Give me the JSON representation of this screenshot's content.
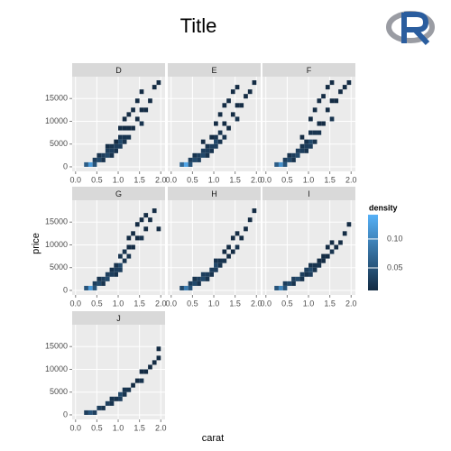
{
  "chart_data": {
    "type": "bin2d",
    "title": "Title",
    "x_label": "carat",
    "y_label": "price",
    "xlim": [
      -0.08,
      2.1
    ],
    "ylim": [
      -1000,
      19800
    ],
    "xticks": [
      {
        "value": 0,
        "label": "0.0"
      },
      0.5,
      {
        "value": 1,
        "label": "1.0"
      },
      1.5,
      {
        "value": 2,
        "label": "2.0"
      }
    ],
    "yticks": [
      0,
      5000,
      10000,
      15000
    ],
    "grid": true,
    "legend": {
      "title": "density",
      "lim": [
        0.011,
        0.142
      ],
      "ticks": [
        0.05,
        {
          "value": 0.1,
          "label": "0.10"
        }
      ],
      "low": "#132B43",
      "high": "#56B1F7"
    },
    "facets": [
      {
        "name": "D",
        "cells": [
          [
            0.2,
            0,
            0.06
          ],
          [
            0.3,
            0,
            0.12
          ],
          [
            0.4,
            0,
            0.05
          ],
          [
            0.4,
            1000,
            0.03
          ],
          [
            0.5,
            1000,
            0.04
          ],
          [
            0.5,
            2000,
            0.02
          ],
          [
            0.6,
            1000,
            0.02
          ],
          [
            0.6,
            2000,
            0.03
          ],
          [
            0.7,
            2000,
            0.04
          ],
          [
            0.7,
            3000,
            0.03
          ],
          [
            0.7,
            4000,
            0.015
          ],
          [
            0.8,
            2000,
            0.02
          ],
          [
            0.8,
            3000,
            0.03
          ],
          [
            0.8,
            4000,
            0.02
          ],
          [
            0.9,
            3000,
            0.02
          ],
          [
            0.9,
            4000,
            0.03
          ],
          [
            0.9,
            5000,
            0.012
          ],
          [
            1.0,
            4000,
            0.03
          ],
          [
            1.0,
            5000,
            0.04
          ],
          [
            1.0,
            6000,
            0.02
          ],
          [
            1.0,
            8000,
            0.012
          ],
          [
            1.1,
            5000,
            0.02
          ],
          [
            1.1,
            6000,
            0.02
          ],
          [
            1.1,
            8000,
            0.012
          ],
          [
            1.1,
            10000,
            0.012
          ],
          [
            1.2,
            6000,
            0.02
          ],
          [
            1.2,
            8000,
            0.012
          ],
          [
            1.2,
            11000,
            0.012
          ],
          [
            1.3,
            8000,
            0.012
          ],
          [
            1.3,
            12000,
            0.012
          ],
          [
            1.4,
            10000,
            0.012
          ],
          [
            1.4,
            14000,
            0.012
          ],
          [
            1.5,
            9000,
            0.02
          ],
          [
            1.5,
            12000,
            0.012
          ],
          [
            1.5,
            16000,
            0.012
          ],
          [
            1.6,
            12000,
            0.012
          ],
          [
            1.7,
            14000,
            0.012
          ],
          [
            1.8,
            17000,
            0.012
          ],
          [
            1.9,
            18000,
            0.012
          ]
        ]
      },
      {
        "name": "E",
        "cells": [
          [
            0.2,
            0,
            0.07
          ],
          [
            0.3,
            0,
            0.13
          ],
          [
            0.4,
            0,
            0.05
          ],
          [
            0.4,
            1000,
            0.03
          ],
          [
            0.5,
            1000,
            0.04
          ],
          [
            0.5,
            2000,
            0.02
          ],
          [
            0.6,
            1000,
            0.03
          ],
          [
            0.6,
            2000,
            0.03
          ],
          [
            0.7,
            2000,
            0.04
          ],
          [
            0.7,
            3000,
            0.03
          ],
          [
            0.7,
            5000,
            0.012
          ],
          [
            0.8,
            2000,
            0.02
          ],
          [
            0.8,
            3000,
            0.03
          ],
          [
            0.8,
            4000,
            0.02
          ],
          [
            0.9,
            3000,
            0.02
          ],
          [
            0.9,
            4000,
            0.03
          ],
          [
            0.9,
            6000,
            0.012
          ],
          [
            1.0,
            4000,
            0.03
          ],
          [
            1.0,
            5000,
            0.04
          ],
          [
            1.0,
            6000,
            0.02
          ],
          [
            1.0,
            9000,
            0.012
          ],
          [
            1.1,
            5000,
            0.02
          ],
          [
            1.1,
            7000,
            0.02
          ],
          [
            1.1,
            11000,
            0.012
          ],
          [
            1.2,
            6000,
            0.02
          ],
          [
            1.2,
            9000,
            0.012
          ],
          [
            1.2,
            13000,
            0.012
          ],
          [
            1.3,
            8000,
            0.012
          ],
          [
            1.3,
            14000,
            0.012
          ],
          [
            1.4,
            11000,
            0.012
          ],
          [
            1.4,
            16000,
            0.012
          ],
          [
            1.5,
            10000,
            0.02
          ],
          [
            1.5,
            13000,
            0.012
          ],
          [
            1.5,
            17000,
            0.012
          ],
          [
            1.6,
            13000,
            0.012
          ],
          [
            1.7,
            15000,
            0.012
          ],
          [
            1.8,
            16000,
            0.012
          ],
          [
            1.9,
            18000,
            0.012
          ]
        ]
      },
      {
        "name": "F",
        "cells": [
          [
            0.2,
            0,
            0.06
          ],
          [
            0.3,
            0,
            0.11
          ],
          [
            0.4,
            0,
            0.05
          ],
          [
            0.4,
            1000,
            0.03
          ],
          [
            0.5,
            1000,
            0.04
          ],
          [
            0.5,
            2000,
            0.02
          ],
          [
            0.6,
            1000,
            0.02
          ],
          [
            0.6,
            2000,
            0.03
          ],
          [
            0.7,
            2000,
            0.04
          ],
          [
            0.7,
            3000,
            0.03
          ],
          [
            0.8,
            3000,
            0.03
          ],
          [
            0.8,
            4000,
            0.02
          ],
          [
            0.8,
            6000,
            0.012
          ],
          [
            0.9,
            3000,
            0.02
          ],
          [
            0.9,
            4000,
            0.03
          ],
          [
            0.9,
            5000,
            0.02
          ],
          [
            1.0,
            4000,
            0.03
          ],
          [
            1.0,
            5000,
            0.04
          ],
          [
            1.0,
            7000,
            0.02
          ],
          [
            1.0,
            10000,
            0.012
          ],
          [
            1.1,
            5000,
            0.02
          ],
          [
            1.1,
            7000,
            0.02
          ],
          [
            1.1,
            12000,
            0.012
          ],
          [
            1.2,
            7000,
            0.02
          ],
          [
            1.2,
            9000,
            0.012
          ],
          [
            1.2,
            14000,
            0.012
          ],
          [
            1.3,
            9000,
            0.012
          ],
          [
            1.3,
            15000,
            0.012
          ],
          [
            1.4,
            12000,
            0.012
          ],
          [
            1.4,
            17000,
            0.012
          ],
          [
            1.5,
            10000,
            0.02
          ],
          [
            1.5,
            14000,
            0.012
          ],
          [
            1.5,
            18000,
            0.012
          ],
          [
            1.6,
            14000,
            0.012
          ],
          [
            1.7,
            16000,
            0.012
          ],
          [
            1.8,
            17000,
            0.012
          ],
          [
            1.9,
            18000,
            0.012
          ]
        ]
      },
      {
        "name": "G",
        "cells": [
          [
            0.2,
            0,
            0.05
          ],
          [
            0.3,
            0,
            0.12
          ],
          [
            0.4,
            0,
            0.05
          ],
          [
            0.4,
            1000,
            0.03
          ],
          [
            0.5,
            1000,
            0.04
          ],
          [
            0.5,
            2000,
            0.02
          ],
          [
            0.6,
            1000,
            0.02
          ],
          [
            0.6,
            2000,
            0.03
          ],
          [
            0.7,
            2000,
            0.04
          ],
          [
            0.7,
            3000,
            0.03
          ],
          [
            0.8,
            3000,
            0.03
          ],
          [
            0.8,
            4000,
            0.02
          ],
          [
            0.9,
            3000,
            0.02
          ],
          [
            0.9,
            4000,
            0.03
          ],
          [
            0.9,
            5000,
            0.02
          ],
          [
            1.0,
            4000,
            0.03
          ],
          [
            1.0,
            5000,
            0.04
          ],
          [
            1.0,
            7000,
            0.02
          ],
          [
            1.1,
            6000,
            0.02
          ],
          [
            1.1,
            8000,
            0.02
          ],
          [
            1.2,
            7000,
            0.02
          ],
          [
            1.2,
            9000,
            0.012
          ],
          [
            1.2,
            11000,
            0.012
          ],
          [
            1.3,
            9000,
            0.012
          ],
          [
            1.3,
            12000,
            0.012
          ],
          [
            1.4,
            11000,
            0.012
          ],
          [
            1.4,
            14000,
            0.012
          ],
          [
            1.5,
            11000,
            0.02
          ],
          [
            1.5,
            15000,
            0.012
          ],
          [
            1.6,
            13000,
            0.012
          ],
          [
            1.6,
            16000,
            0.012
          ],
          [
            1.7,
            15000,
            0.012
          ],
          [
            1.8,
            17000,
            0.012
          ],
          [
            1.9,
            13000,
            0.012
          ]
        ]
      },
      {
        "name": "H",
        "cells": [
          [
            0.2,
            0,
            0.04
          ],
          [
            0.3,
            0,
            0.09
          ],
          [
            0.4,
            0,
            0.05
          ],
          [
            0.4,
            1000,
            0.03
          ],
          [
            0.5,
            1000,
            0.04
          ],
          [
            0.5,
            2000,
            0.02
          ],
          [
            0.6,
            1000,
            0.02
          ],
          [
            0.6,
            2000,
            0.03
          ],
          [
            0.7,
            2000,
            0.04
          ],
          [
            0.7,
            3000,
            0.03
          ],
          [
            0.8,
            2000,
            0.02
          ],
          [
            0.8,
            3000,
            0.03
          ],
          [
            0.9,
            3000,
            0.02
          ],
          [
            0.9,
            4000,
            0.03
          ],
          [
            1.0,
            4000,
            0.03
          ],
          [
            1.0,
            5000,
            0.04
          ],
          [
            1.0,
            6000,
            0.02
          ],
          [
            1.1,
            5000,
            0.02
          ],
          [
            1.1,
            6000,
            0.02
          ],
          [
            1.2,
            6000,
            0.02
          ],
          [
            1.2,
            8000,
            0.012
          ],
          [
            1.3,
            7000,
            0.012
          ],
          [
            1.3,
            9000,
            0.012
          ],
          [
            1.4,
            8000,
            0.012
          ],
          [
            1.4,
            11000,
            0.012
          ],
          [
            1.5,
            9000,
            0.02
          ],
          [
            1.5,
            12000,
            0.012
          ],
          [
            1.6,
            11000,
            0.012
          ],
          [
            1.7,
            13000,
            0.012
          ],
          [
            1.8,
            15000,
            0.012
          ],
          [
            1.9,
            17000,
            0.012
          ]
        ]
      },
      {
        "name": "I",
        "cells": [
          [
            0.2,
            0,
            0.05
          ],
          [
            0.3,
            0,
            0.1
          ],
          [
            0.4,
            0,
            0.05
          ],
          [
            0.4,
            1000,
            0.03
          ],
          [
            0.5,
            1000,
            0.04
          ],
          [
            0.6,
            1000,
            0.02
          ],
          [
            0.6,
            2000,
            0.03
          ],
          [
            0.7,
            2000,
            0.04
          ],
          [
            0.8,
            2000,
            0.02
          ],
          [
            0.8,
            3000,
            0.03
          ],
          [
            0.9,
            3000,
            0.02
          ],
          [
            0.9,
            4000,
            0.03
          ],
          [
            1.0,
            3000,
            0.03
          ],
          [
            1.0,
            4000,
            0.04
          ],
          [
            1.0,
            5000,
            0.02
          ],
          [
            1.1,
            4000,
            0.02
          ],
          [
            1.1,
            5000,
            0.02
          ],
          [
            1.2,
            5000,
            0.02
          ],
          [
            1.2,
            6000,
            0.012
          ],
          [
            1.3,
            6000,
            0.012
          ],
          [
            1.3,
            7000,
            0.012
          ],
          [
            1.4,
            7000,
            0.012
          ],
          [
            1.4,
            9000,
            0.012
          ],
          [
            1.5,
            8000,
            0.02
          ],
          [
            1.5,
            10000,
            0.012
          ],
          [
            1.6,
            9000,
            0.012
          ],
          [
            1.7,
            10000,
            0.012
          ],
          [
            1.8,
            12000,
            0.012
          ],
          [
            1.9,
            14000,
            0.012
          ]
        ]
      },
      {
        "name": "J",
        "cells": [
          [
            0.2,
            0,
            0.03
          ],
          [
            0.3,
            0,
            0.05
          ],
          [
            0.4,
            0,
            0.03
          ],
          [
            0.5,
            1000,
            0.03
          ],
          [
            0.6,
            1000,
            0.02
          ],
          [
            0.7,
            2000,
            0.03
          ],
          [
            0.8,
            2000,
            0.02
          ],
          [
            0.8,
            3000,
            0.02
          ],
          [
            0.9,
            3000,
            0.02
          ],
          [
            1.0,
            3000,
            0.03
          ],
          [
            1.0,
            4000,
            0.04
          ],
          [
            1.1,
            4000,
            0.02
          ],
          [
            1.1,
            5000,
            0.02
          ],
          [
            1.2,
            5000,
            0.02
          ],
          [
            1.3,
            6000,
            0.012
          ],
          [
            1.4,
            7000,
            0.012
          ],
          [
            1.5,
            7000,
            0.02
          ],
          [
            1.5,
            9000,
            0.012
          ],
          [
            1.6,
            9000,
            0.012
          ],
          [
            1.7,
            10000,
            0.012
          ],
          [
            1.8,
            11000,
            0.012
          ],
          [
            1.9,
            12000,
            0.012
          ],
          [
            1.9,
            14000,
            0.012
          ]
        ]
      }
    ]
  }
}
